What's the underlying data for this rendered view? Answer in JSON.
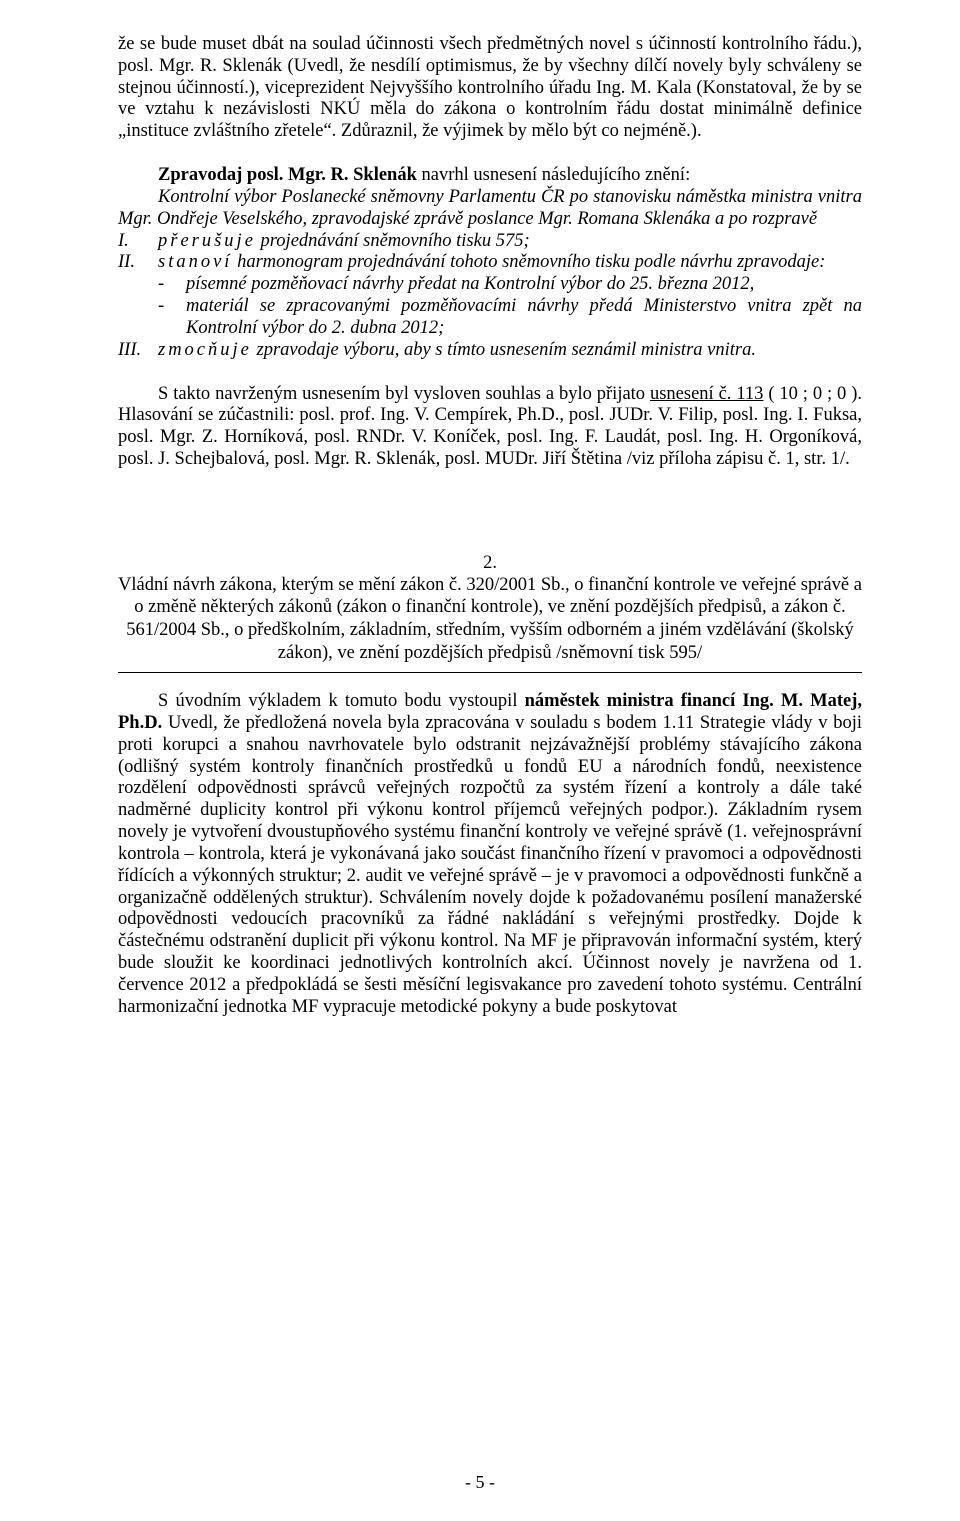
{
  "para1": "že se bude muset dbát na soulad účinnosti všech předmětných novel s účinností kontrolního řádu.), posl. Mgr. R. Sklenák (Uvedl, že nesdílí optimismus, že by všechny dílčí novely byly schváleny se stejnou účinností.), viceprezident Nejvyššího kontrolního úřadu Ing. M. Kala (Konstatoval, že by se ve vztahu k nezávislosti NKÚ měla do zákona o kontrolním řádu dostat minimálně definice „instituce zvláštního zřetele“. Zdůraznil, že výjimek by mělo být co nejméně.).",
  "zpravodaj_label": "Zpravodaj posl. Mgr. R. Sklenák",
  "zpravodaj_tail": " navrhl usnesení následujícího znění:",
  "motion_intro": "Kontrolní výbor Poslanecké sněmovny Parlamentu ČR po stanovisku náměstka ministra vnitra Mgr. Ondřeje Veselského, zpravodajské zprávě poslance Mgr. Romana Sklenáka a po rozpravě",
  "items": {
    "i_roman": "I.",
    "i_word": "přerušuje",
    "i_body": " projednávání sněmovního tisku 575;",
    "ii_roman": "II.",
    "ii_word": "stanoví",
    "ii_body": " harmonogram projednávání tohoto sněmovního tisku podle návrhu zpravodaje:",
    "ii_b1": "písemné pozměňovací návrhy předat na Kontrolní výbor do 25. března 2012,",
    "ii_b2": "materiál se zpracovanými pozměňovacími návrhy předá Ministerstvo vnitra zpět na Kontrolní výbor do 2. dubna 2012;",
    "iii_roman": "III.",
    "iii_word": "zmocňuje",
    "iii_body": " zpravodaje výboru, aby s tímto usnesením seznámil ministra vnitra."
  },
  "adopt_lead": "S takto navrženým usnesením byl vysloven souhlas a bylo přijato ",
  "adopt_us_label": "usnesení č. 113",
  "adopt_tail": " ( 10 ; 0 ; 0 ). Hlasování se zúčastnili: posl. prof. Ing. V. Cempírek, Ph.D., posl. JUDr. V. Filip, posl. Ing. I. Fuksa, posl. Mgr. Z. Horníková, posl. RNDr. V. Koníček, posl. Ing. F. Laudát, posl. Ing. H. Orgoníková, posl. J. Schejbalová, posl. Mgr. R. Sklenák, posl. MUDr. Jiří Štětina /viz příloha zápisu č. 1, str. 1/.",
  "section2_number": "2.",
  "section2_title": "Vládní návrh zákona, kterým se mění zákon č. 320/2001 Sb., o finanční kontrole ve veřejné správě a o změně některých zákonů (zákon o finanční kontrole), ve znění pozdějších předpisů, a zákon č. 561/2004 Sb., o předškolním, základním, středním, vyšším odborném a jiném vzdělávání (školský zákon), ve znění pozdějších předpisů /sněmovní tisk 595/",
  "s2_p1_lead": "S úvodním výkladem k tomuto bodu vystoupil ",
  "s2_p1_bold1": "náměstek ministra financí Ing. M. Matej, Ph.D.",
  "s2_p1_body": " Uvedl, že předložená novela byla zpracována v souladu s bodem 1.11 Strategie vlády v boji proti korupci a snahou navrhovatele bylo odstranit nejzávažnější problémy stávajícího zákona (odlišný systém kontroly finančních prostředků u fondů EU a národních fondů, neexistence rozdělení odpovědnosti správců veřejných rozpočtů za systém řízení a kontroly a dále také nadměrné duplicity kontrol při výkonu kontrol příjemců veřejných podpor.). Základním rysem novely je vytvoření dvoustupňového systému finanční kontroly ve veřejné správě (1. veřejnosprávní kontrola – kontrola, která je vykonávaná jako součást finančního řízení v pravomoci a odpovědnosti řídících a výkonných struktur;  2. audit ve veřejné správě – je v pravomoci a odpovědnosti funkčně a organizačně oddělených struktur). Schválením novely dojde k požadovanému posílení manažerské odpovědnosti vedoucích pracovníků za řádné nakládání s veřejnými prostředky. Dojde k částečnému odstranění duplicit při výkonu kontrol. Na MF je připravován informační systém, který bude sloužit ke koordinaci jednotlivých kontrolních akcí. Účinnost novely je navržena od 1. července 2012 a předpokládá se šesti měsíční legisvakance pro zavedení tohoto systému. Centrální harmonizační jednotka MF vypracuje metodické pokyny a bude poskytovat",
  "page_number": "- 5 -"
}
